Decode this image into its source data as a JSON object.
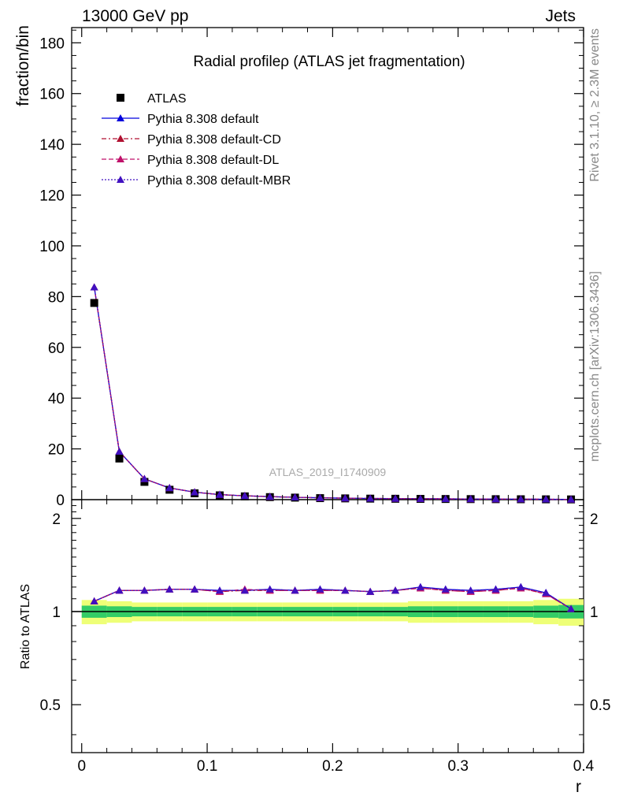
{
  "header": {
    "left": "13000 GeV pp",
    "right": "Jets"
  },
  "side_labels": {
    "rivet": "Rivet 3.1.10, ≥ 2.3M events",
    "mcplots": "mcplots.cern.ch [arXiv:1306.3436]"
  },
  "chart_data": {
    "type": "scatter",
    "title": "Radial profileρ (ATLAS jet fragmentation)",
    "watermark": "ATLAS_2019_I1740909",
    "xlabel": "r",
    "ylabel": "fraction/bin",
    "ratio_ylabel": "Ratio to ATLAS",
    "xlim": [
      -0.008,
      0.4
    ],
    "ylim": [
      0,
      186
    ],
    "ratio_ylim": [
      0.35,
      2.3
    ],
    "x_ticks": [
      0,
      0.1,
      0.2,
      0.3,
      0.4
    ],
    "x_tick_labels": [
      "0",
      "0.1",
      "0.2",
      "0.3",
      "0.4"
    ],
    "y_ticks": [
      0,
      20,
      40,
      60,
      80,
      100,
      120,
      140,
      160,
      180
    ],
    "y_tick_labels": [
      "0",
      "20",
      "40",
      "60",
      "80",
      "100",
      "120",
      "140",
      "160",
      "180"
    ],
    "ratio_ticks": [
      0.5,
      1,
      2
    ],
    "ratio_tick_labels": [
      "0.5",
      "1",
      "2"
    ],
    "x": [
      0.01,
      0.03,
      0.05,
      0.07,
      0.09,
      0.11,
      0.13,
      0.15,
      0.17,
      0.19,
      0.21,
      0.23,
      0.25,
      0.27,
      0.29,
      0.31,
      0.33,
      0.35,
      0.37,
      0.39
    ],
    "data": {
      "name": "ATLAS",
      "values": [
        77.5,
        16.2,
        7.0,
        3.9,
        2.5,
        1.7,
        1.3,
        1.0,
        0.8,
        0.6,
        0.5,
        0.4,
        0.35,
        0.3,
        0.26,
        0.22,
        0.19,
        0.16,
        0.13,
        0.1
      ],
      "color": "#000000"
    },
    "series": [
      {
        "name": "Pythia 8.308 default",
        "color": "#0000dd",
        "dash": "solid",
        "ratio": [
          1.08,
          1.17,
          1.17,
          1.18,
          1.18,
          1.17,
          1.17,
          1.18,
          1.17,
          1.18,
          1.17,
          1.16,
          1.17,
          1.2,
          1.18,
          1.17,
          1.18,
          1.2,
          1.15,
          1.02
        ]
      },
      {
        "name": "Pythia 8.308 default-CD",
        "color": "#b01030",
        "dash": "dashdot",
        "ratio": [
          1.08,
          1.17,
          1.17,
          1.18,
          1.18,
          1.16,
          1.17,
          1.17,
          1.17,
          1.17,
          1.17,
          1.16,
          1.17,
          1.19,
          1.17,
          1.16,
          1.17,
          1.19,
          1.14,
          1.02
        ]
      },
      {
        "name": "Pythia 8.308 default-DL",
        "color": "#c0106a",
        "dash": "dashed",
        "ratio": [
          1.08,
          1.17,
          1.17,
          1.18,
          1.18,
          1.16,
          1.18,
          1.17,
          1.17,
          1.17,
          1.17,
          1.16,
          1.17,
          1.19,
          1.17,
          1.16,
          1.17,
          1.19,
          1.14,
          1.02
        ]
      },
      {
        "name": "Pythia 8.308 default-MBR",
        "color": "#4010c0",
        "dash": "dotted",
        "ratio": [
          1.08,
          1.17,
          1.17,
          1.18,
          1.18,
          1.17,
          1.17,
          1.18,
          1.17,
          1.18,
          1.17,
          1.16,
          1.17,
          1.2,
          1.18,
          1.17,
          1.18,
          1.2,
          1.15,
          1.02
        ]
      }
    ],
    "band_colors": {
      "inner": "#33cc66",
      "outer": "#eeff77"
    },
    "ratio_band": [
      0.045,
      0.04,
      0.035,
      0.035,
      0.035,
      0.035,
      0.035,
      0.035,
      0.035,
      0.035,
      0.035,
      0.035,
      0.035,
      0.04,
      0.04,
      0.04,
      0.04,
      0.04,
      0.045,
      0.05
    ],
    "grid": false,
    "legend_position": "top-left"
  }
}
